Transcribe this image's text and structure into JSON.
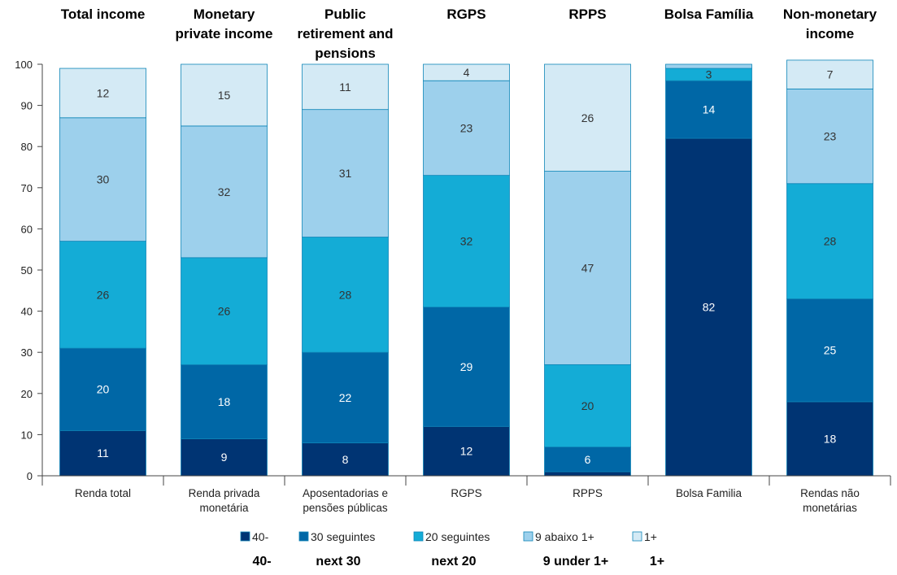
{
  "chart_data": {
    "type": "bar",
    "stacked": true,
    "ylim": [
      0,
      100
    ],
    "yticks": [
      0,
      10,
      20,
      30,
      40,
      50,
      60,
      70,
      80,
      90,
      100
    ],
    "grid": false,
    "legend_position": "bottom",
    "column_titles": [
      "Total income",
      "Monetary private income",
      "Public retirement and pensions",
      "RGPS",
      "RPPS",
      "Bolsa Família",
      "Non-monetary income"
    ],
    "categories": [
      "Renda total",
      "Renda privada monetária",
      "Aposentadorias e pensões públicas",
      "RGPS",
      "RPPS",
      "Bolsa Familia",
      "Rendas não monetárias"
    ],
    "series": [
      {
        "name": "40-",
        "name_en": "40-",
        "color": "#003473",
        "label_color": "#ffffff",
        "values": [
          11,
          9,
          8,
          12,
          1,
          82,
          18
        ],
        "labels": [
          "11",
          "9",
          "8",
          "12",
          "",
          "82",
          "18"
        ]
      },
      {
        "name": "30 seguintes",
        "name_en": "next 30",
        "color": "#0067a6",
        "label_color": "#ffffff",
        "values": [
          20,
          18,
          22,
          29,
          6,
          14,
          25
        ],
        "labels": [
          "20",
          "18",
          "22",
          "29",
          "6",
          "14",
          "25"
        ]
      },
      {
        "name": "20 seguintes",
        "name_en": "next 20",
        "color": "#14acd6",
        "label_color": "#333333",
        "values": [
          26,
          26,
          28,
          32,
          20,
          3,
          28
        ],
        "labels": [
          "26",
          "26",
          "28",
          "32",
          "20",
          "3",
          "28"
        ]
      },
      {
        "name": "9 abaixo 1+",
        "name_en": "9 under 1+",
        "color": "#9dd0ec",
        "label_color": "#333333",
        "values": [
          30,
          32,
          31,
          23,
          47,
          1,
          23
        ],
        "labels": [
          "30",
          "32",
          "31",
          "23",
          "47",
          "",
          "23"
        ]
      },
      {
        "name": "1+",
        "name_en": "1+",
        "color": "#d4eaf5",
        "label_color": "#333333",
        "values": [
          12,
          15,
          11,
          4,
          26,
          0,
          7
        ],
        "labels": [
          "12",
          "15",
          "11",
          "4",
          "26",
          "",
          "7"
        ]
      }
    ]
  }
}
